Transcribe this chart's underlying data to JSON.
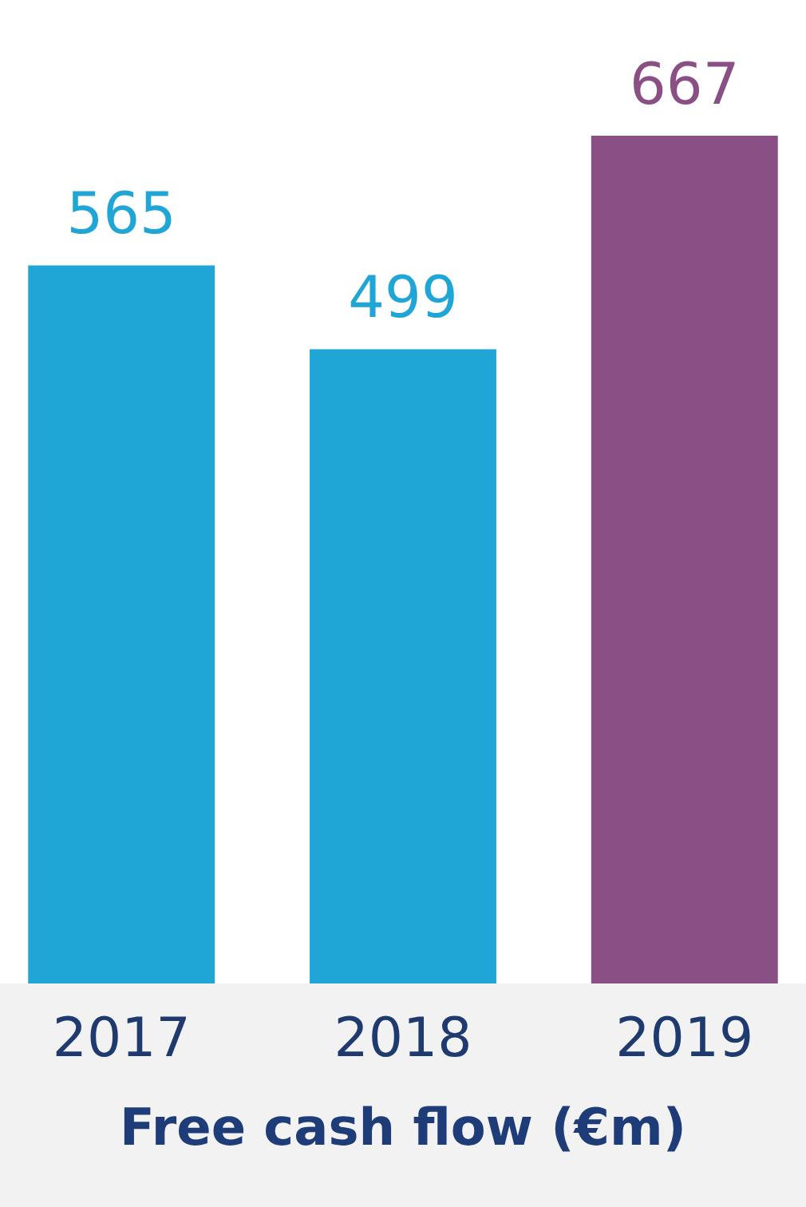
{
  "chart_data": {
    "type": "bar",
    "title": "Free cash flow (€m)",
    "categories": [
      "2017",
      "2018",
      "2019"
    ],
    "values": [
      565,
      499,
      667
    ],
    "colors": [
      "#1fa6d6",
      "#1fa6d6",
      "#8a4f85"
    ],
    "data_labels": true
  }
}
